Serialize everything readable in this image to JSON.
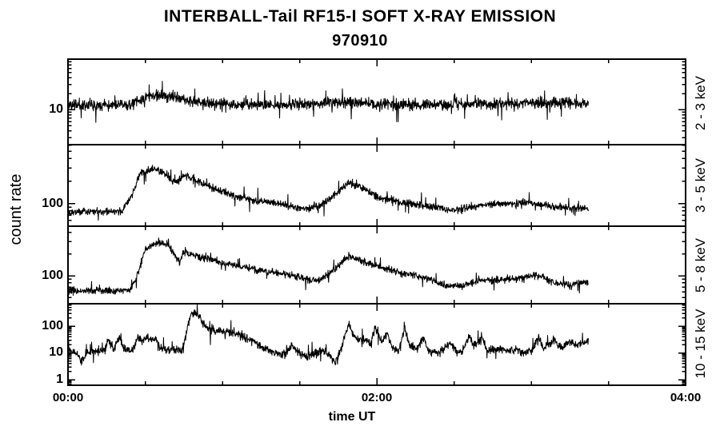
{
  "chart_data": {
    "type": "line",
    "title": "INTERBALL-Tail RF15-I SOFT X-RAY EMISSION",
    "subtitle": "970910",
    "xlabel": "time UT",
    "ylabel": "count rate",
    "grid": "off",
    "legend": "none",
    "line_color": "#000000",
    "background_color": "#ffffff",
    "x_axis": {
      "range_hours": [
        0,
        4
      ],
      "tick_labels": [
        "00:00",
        "02:00",
        "04:00"
      ],
      "major_tick_every_hours": 2,
      "minor_tick_every_hours": 0.5,
      "data_end_hours": 3.37
    },
    "y_axis": {
      "scale": "log"
    },
    "panels": [
      {
        "band_label": "2 - 3 keV",
        "ylim": [
          2.2,
          90
        ],
        "ytick_labels": [
          {
            "value": 10,
            "text": "10"
          }
        ],
        "trend": {
          "t_hours": [
            0,
            0.4,
            0.47,
            0.53,
            0.6,
            0.7,
            0.8,
            0.95,
            1.25,
            1.55,
            1.75,
            1.95,
            2.3,
            2.7,
            3.0,
            3.15,
            3.37
          ],
          "counts": [
            12.5,
            12.5,
            15,
            18.5,
            19,
            17,
            14.5,
            13,
            12.3,
            12.8,
            14.2,
            13,
            12.2,
            12.8,
            13.5,
            14,
            13.2
          ]
        },
        "noise_log10": 0.15,
        "spike_prob": 0.05,
        "spike_log10": 0.3,
        "spike_bias": -0.55,
        "seed": 11
      },
      {
        "band_label": "3 - 5 keV",
        "ylim": [
          50,
          612
        ],
        "ytick_labels": [
          {
            "value": 100,
            "text": "100"
          }
        ],
        "trend": {
          "t_hours": [
            0,
            0.34,
            0.4,
            0.47,
            0.55,
            0.62,
            0.69,
            0.76,
            0.91,
            1.11,
            1.32,
            1.45,
            1.55,
            1.63,
            1.74,
            1.82,
            1.92,
            2.02,
            2.15,
            2.25,
            2.49,
            2.59,
            2.72,
            2.87,
            3.0,
            3.13,
            3.26,
            3.37
          ],
          "counts": [
            78,
            78,
            110,
            260,
            290,
            260,
            190,
            235,
            170,
            120,
            103,
            92,
            86,
            95,
            135,
            195,
            155,
            120,
            105,
            97,
            82,
            88,
            98,
            100,
            103,
            92,
            88,
            87
          ]
        },
        "noise_log10": 0.07,
        "spike_prob": 0.04,
        "spike_log10": 0.15,
        "spike_bias": -0.5,
        "seed": 22
      },
      {
        "band_label": "5 - 8 keV",
        "ylim": [
          41,
          488
        ],
        "ytick_labels": [
          {
            "value": 100,
            "text": "100"
          }
        ],
        "trend": {
          "t_hours": [
            0,
            0.3,
            0.4,
            0.44,
            0.5,
            0.55,
            0.6,
            0.65,
            0.72,
            0.75,
            0.85,
            1.0,
            1.15,
            1.3,
            1.45,
            1.55,
            1.62,
            1.72,
            1.82,
            1.92,
            2.02,
            2.15,
            2.3,
            2.45,
            2.55,
            2.65,
            2.8,
            2.95,
            3.03,
            3.15,
            3.25,
            3.32,
            3.37
          ],
          "counts": [
            62,
            62,
            64,
            90,
            230,
            270,
            290,
            270,
            155,
            215,
            185,
            150,
            130,
            115,
            100,
            90,
            85,
            120,
            190,
            155,
            135,
            110,
            95,
            73,
            72,
            85,
            88,
            92,
            105,
            80,
            74,
            80,
            82
          ]
        },
        "noise_log10": 0.07,
        "spike_prob": 0.04,
        "spike_log10": 0.15,
        "spike_bias": -0.5,
        "seed": 33
      },
      {
        "band_label": "10 - 15 keV",
        "ylim": [
          0.62,
          685
        ],
        "ytick_labels": [
          {
            "value": 100,
            "text": "100"
          },
          {
            "value": 10,
            "text": "10"
          },
          {
            "value": 1,
            "text": "1"
          }
        ],
        "trend": {
          "t_hours": [
            0,
            0.05,
            0.09,
            0.13,
            0.2,
            0.24,
            0.26,
            0.28,
            0.3,
            0.33,
            0.37,
            0.42,
            0.45,
            0.48,
            0.51,
            0.54,
            0.57,
            0.6,
            0.66,
            0.74,
            0.78,
            0.8,
            0.83,
            0.86,
            0.88,
            0.91,
            0.97,
            1.05,
            1.1,
            1.18,
            1.25,
            1.32,
            1.4,
            1.45,
            1.5,
            1.55,
            1.6,
            1.65,
            1.7,
            1.73,
            1.77,
            1.8,
            1.82,
            1.85,
            1.88,
            1.92,
            1.96,
            1.99,
            2.03,
            2.07,
            2.1,
            2.14,
            2.18,
            2.21,
            2.26,
            2.3,
            2.33,
            2.4,
            2.48,
            2.52,
            2.56,
            2.6,
            2.63,
            2.68,
            2.72,
            2.8,
            2.85,
            2.9,
            2.95,
            3.0,
            3.05,
            3.08,
            3.15,
            3.2,
            3.25,
            3.3,
            3.33,
            3.37
          ],
          "counts": [
            12,
            10,
            5,
            10,
            11,
            14,
            33,
            20,
            15,
            38,
            13,
            12,
            40,
            25,
            45,
            30,
            35,
            15,
            13,
            13,
            120,
            300,
            330,
            200,
            120,
            75,
            65,
            63,
            55,
            30,
            18,
            11,
            9,
            18,
            9,
            7,
            10,
            12,
            8,
            4,
            15,
            60,
            120,
            45,
            28,
            35,
            22,
            100,
            25,
            50,
            15,
            12,
            85,
            20,
            13,
            40,
            12,
            10,
            25,
            10,
            12,
            50,
            18,
            35,
            12,
            15,
            12,
            14,
            10,
            12,
            40,
            15,
            30,
            14,
            28,
            20,
            25,
            30
          ]
        },
        "noise_log10": 0.22,
        "spike_prob": 0.06,
        "spike_log10": 0.4,
        "spike_bias": -0.5,
        "seed": 44
      }
    ]
  }
}
